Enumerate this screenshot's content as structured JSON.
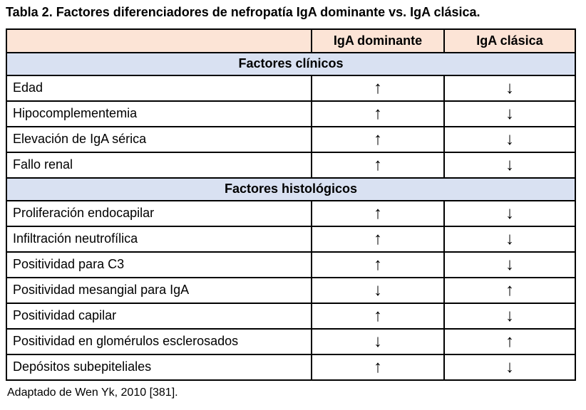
{
  "title": "Tabla 2. Factores diferenciadores de nefropatía IgA dominante vs. IgA clásica.",
  "footnote": "Adaptado de Wen Yk, 2010 [381].",
  "colors": {
    "header_bg": "#FCE4D6",
    "section_bg": "#D9E1F2",
    "border": "#000000",
    "text": "#000000",
    "page_bg": "#FFFFFF"
  },
  "chart_data": {
    "type": "table",
    "title": "Tabla 2. Factores diferenciadores de nefropatía IgA dominante vs. IgA clásica.",
    "columns": [
      "",
      "IgA dominante",
      "IgA clásica"
    ],
    "sections": [
      {
        "header": "Factores clínicos",
        "rows": [
          {
            "label": "Edad",
            "dominante": "↑",
            "clasica": "↓"
          },
          {
            "label": "Hipocomplementemia",
            "dominante": "↑",
            "clasica": "↓"
          },
          {
            "label": "Elevación de IgA sérica",
            "dominante": "↑",
            "clasica": "↓"
          },
          {
            "label": "Fallo renal",
            "dominante": "↑",
            "clasica": "↓"
          }
        ]
      },
      {
        "header": "Factores histológicos",
        "rows": [
          {
            "label": "Proliferación endocapilar",
            "dominante": "↑",
            "clasica": "↓"
          },
          {
            "label": "Infiltración neutrofílica",
            "dominante": "↑",
            "clasica": "↓"
          },
          {
            "label": "Positividad para C3",
            "dominante": "↑",
            "clasica": "↓"
          },
          {
            "label": "Positividad mesangial para IgA",
            "dominante": "↓",
            "clasica": "↑"
          },
          {
            "label": "Positividad capilar",
            "dominante": "↑",
            "clasica": "↓"
          },
          {
            "label": "Positividad en glomérulos esclerosados",
            "dominante": "↓",
            "clasica": "↑"
          },
          {
            "label": "Depósitos subepiteliales",
            "dominante": "↑",
            "clasica": "↓"
          }
        ]
      }
    ]
  }
}
